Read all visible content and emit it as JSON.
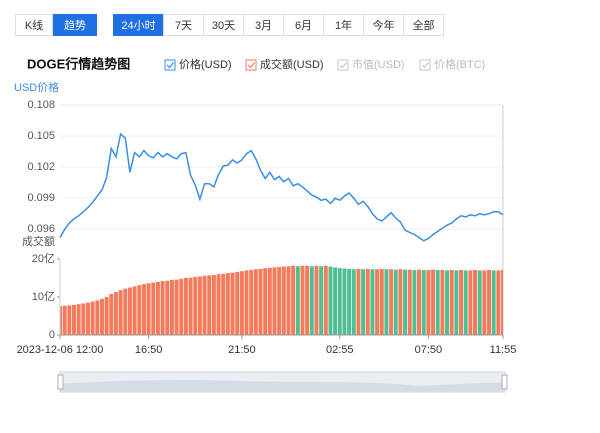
{
  "tabs": [
    {
      "label": "K线",
      "selected": false
    },
    {
      "label": "趋势",
      "selected": true
    }
  ],
  "ranges": [
    {
      "label": "24小时",
      "selected": true
    },
    {
      "label": "7天",
      "selected": false
    },
    {
      "label": "30天",
      "selected": false
    },
    {
      "label": "3月",
      "selected": false
    },
    {
      "label": "6月",
      "selected": false
    },
    {
      "label": "1年",
      "selected": false
    },
    {
      "label": "今年",
      "selected": false
    },
    {
      "label": "全部",
      "selected": false
    }
  ],
  "chart_data": {
    "type": "line",
    "title": "DOGE行情趋势图",
    "ylabel": "USD价格",
    "y2label": "成交额",
    "categories": [
      "2023-12-06 12:00",
      null,
      null,
      null,
      null,
      null,
      null,
      null,
      null,
      null,
      null,
      null,
      null,
      null,
      null,
      null,
      null,
      null,
      null,
      "16:50",
      null,
      null,
      null,
      null,
      null,
      null,
      null,
      null,
      null,
      null,
      null,
      null,
      null,
      null,
      null,
      null,
      null,
      null,
      null,
      "21:50",
      null,
      null,
      null,
      null,
      null,
      null,
      null,
      null,
      null,
      null,
      null,
      null,
      null,
      null,
      null,
      null,
      null,
      null,
      null,
      null,
      "02:55",
      null,
      null,
      null,
      null,
      null,
      null,
      null,
      null,
      null,
      null,
      null,
      null,
      null,
      null,
      null,
      null,
      null,
      null,
      "07:50",
      null,
      null,
      null,
      null,
      null,
      null,
      null,
      null,
      null,
      null,
      null,
      null,
      null,
      null,
      null,
      "11:55"
    ],
    "ylim": [
      0.094,
      0.108
    ],
    "yticks": [
      0.096,
      0.099,
      0.102,
      0.105,
      0.108
    ],
    "y2lim": [
      0,
      20
    ],
    "y2ticks": [
      0,
      {
        "value": 10,
        "label": "10亿"
      },
      {
        "value": 20,
        "label": "20亿"
      }
    ],
    "grid": true,
    "series": [
      {
        "name": "价格(USD)",
        "color": "#3a8ee6",
        "values": [
          0.0952,
          0.096,
          0.0966,
          0.097,
          0.0973,
          0.0977,
          0.0981,
          0.0986,
          0.0992,
          0.0998,
          0.101,
          0.1038,
          0.103,
          0.1052,
          0.1048,
          0.1015,
          0.1034,
          0.103,
          0.1036,
          0.1031,
          0.1029,
          0.1034,
          0.103,
          0.1033,
          0.103,
          0.1028,
          0.1033,
          0.1034,
          0.1012,
          0.1003,
          0.0989,
          0.1004,
          0.1004,
          0.1001,
          0.1013,
          0.1021,
          0.1022,
          0.1027,
          0.1024,
          0.1027,
          0.1033,
          0.1036,
          0.1028,
          0.1017,
          0.1009,
          0.1015,
          0.1008,
          0.1011,
          0.1006,
          0.1009,
          0.1002,
          0.1004,
          0.1001,
          0.0997,
          0.0993,
          0.0991,
          0.0988,
          0.0989,
          0.0985,
          0.099,
          0.0988,
          0.0992,
          0.0995,
          0.099,
          0.0984,
          0.0987,
          0.0982,
          0.0975,
          0.097,
          0.0968,
          0.0972,
          0.0976,
          0.0971,
          0.0967,
          0.0959,
          0.0957,
          0.0955,
          0.0952,
          0.0949,
          0.0951,
          0.0955,
          0.0958,
          0.0961,
          0.0964,
          0.0966,
          0.097,
          0.0973,
          0.0972,
          0.0974,
          0.0973,
          0.0975,
          0.0974,
          0.0975,
          0.0977,
          0.0977,
          0.0974
        ]
      },
      {
        "name": "成交额(USD)",
        "type": "bar",
        "axis": "y2",
        "color": "#f47a5c",
        "fall_color": "#4fbf91",
        "values": [
          7.6,
          7.7,
          7.8,
          7.9,
          8.1,
          8.3,
          8.5,
          8.8,
          9.1,
          9.5,
          10.0,
          10.8,
          11.3,
          11.8,
          12.2,
          12.5,
          12.8,
          13.1,
          13.4,
          13.6,
          13.8,
          14.0,
          14.2,
          14.3,
          14.5,
          14.6,
          14.8,
          15.0,
          15.1,
          15.3,
          15.4,
          15.6,
          15.7,
          15.8,
          16.0,
          16.1,
          16.3,
          16.4,
          16.6,
          16.8,
          17.0,
          17.1,
          17.3,
          17.4,
          17.6,
          17.7,
          17.8,
          17.9,
          18.0,
          18.1,
          18.2,
          18.1,
          18.2,
          18.2,
          18.1,
          18.2,
          18.1,
          18.2,
          18.0,
          17.8,
          17.6,
          17.5,
          17.4,
          17.3,
          17.4,
          17.3,
          17.4,
          17.3,
          17.3,
          17.4,
          17.3,
          17.3,
          17.2,
          17.3,
          17.2,
          17.2,
          17.1,
          17.2,
          17.1,
          17.1,
          17.2,
          17.1,
          17.1,
          17.0,
          17.1,
          17.0,
          17.1,
          17.0,
          17.0,
          17.1,
          17.0,
          17.0,
          17.1,
          17.0,
          17.0,
          17.1
        ]
      }
    ],
    "hidden_series": [
      "市值(USD)",
      "价格(BTC)"
    ]
  }
}
